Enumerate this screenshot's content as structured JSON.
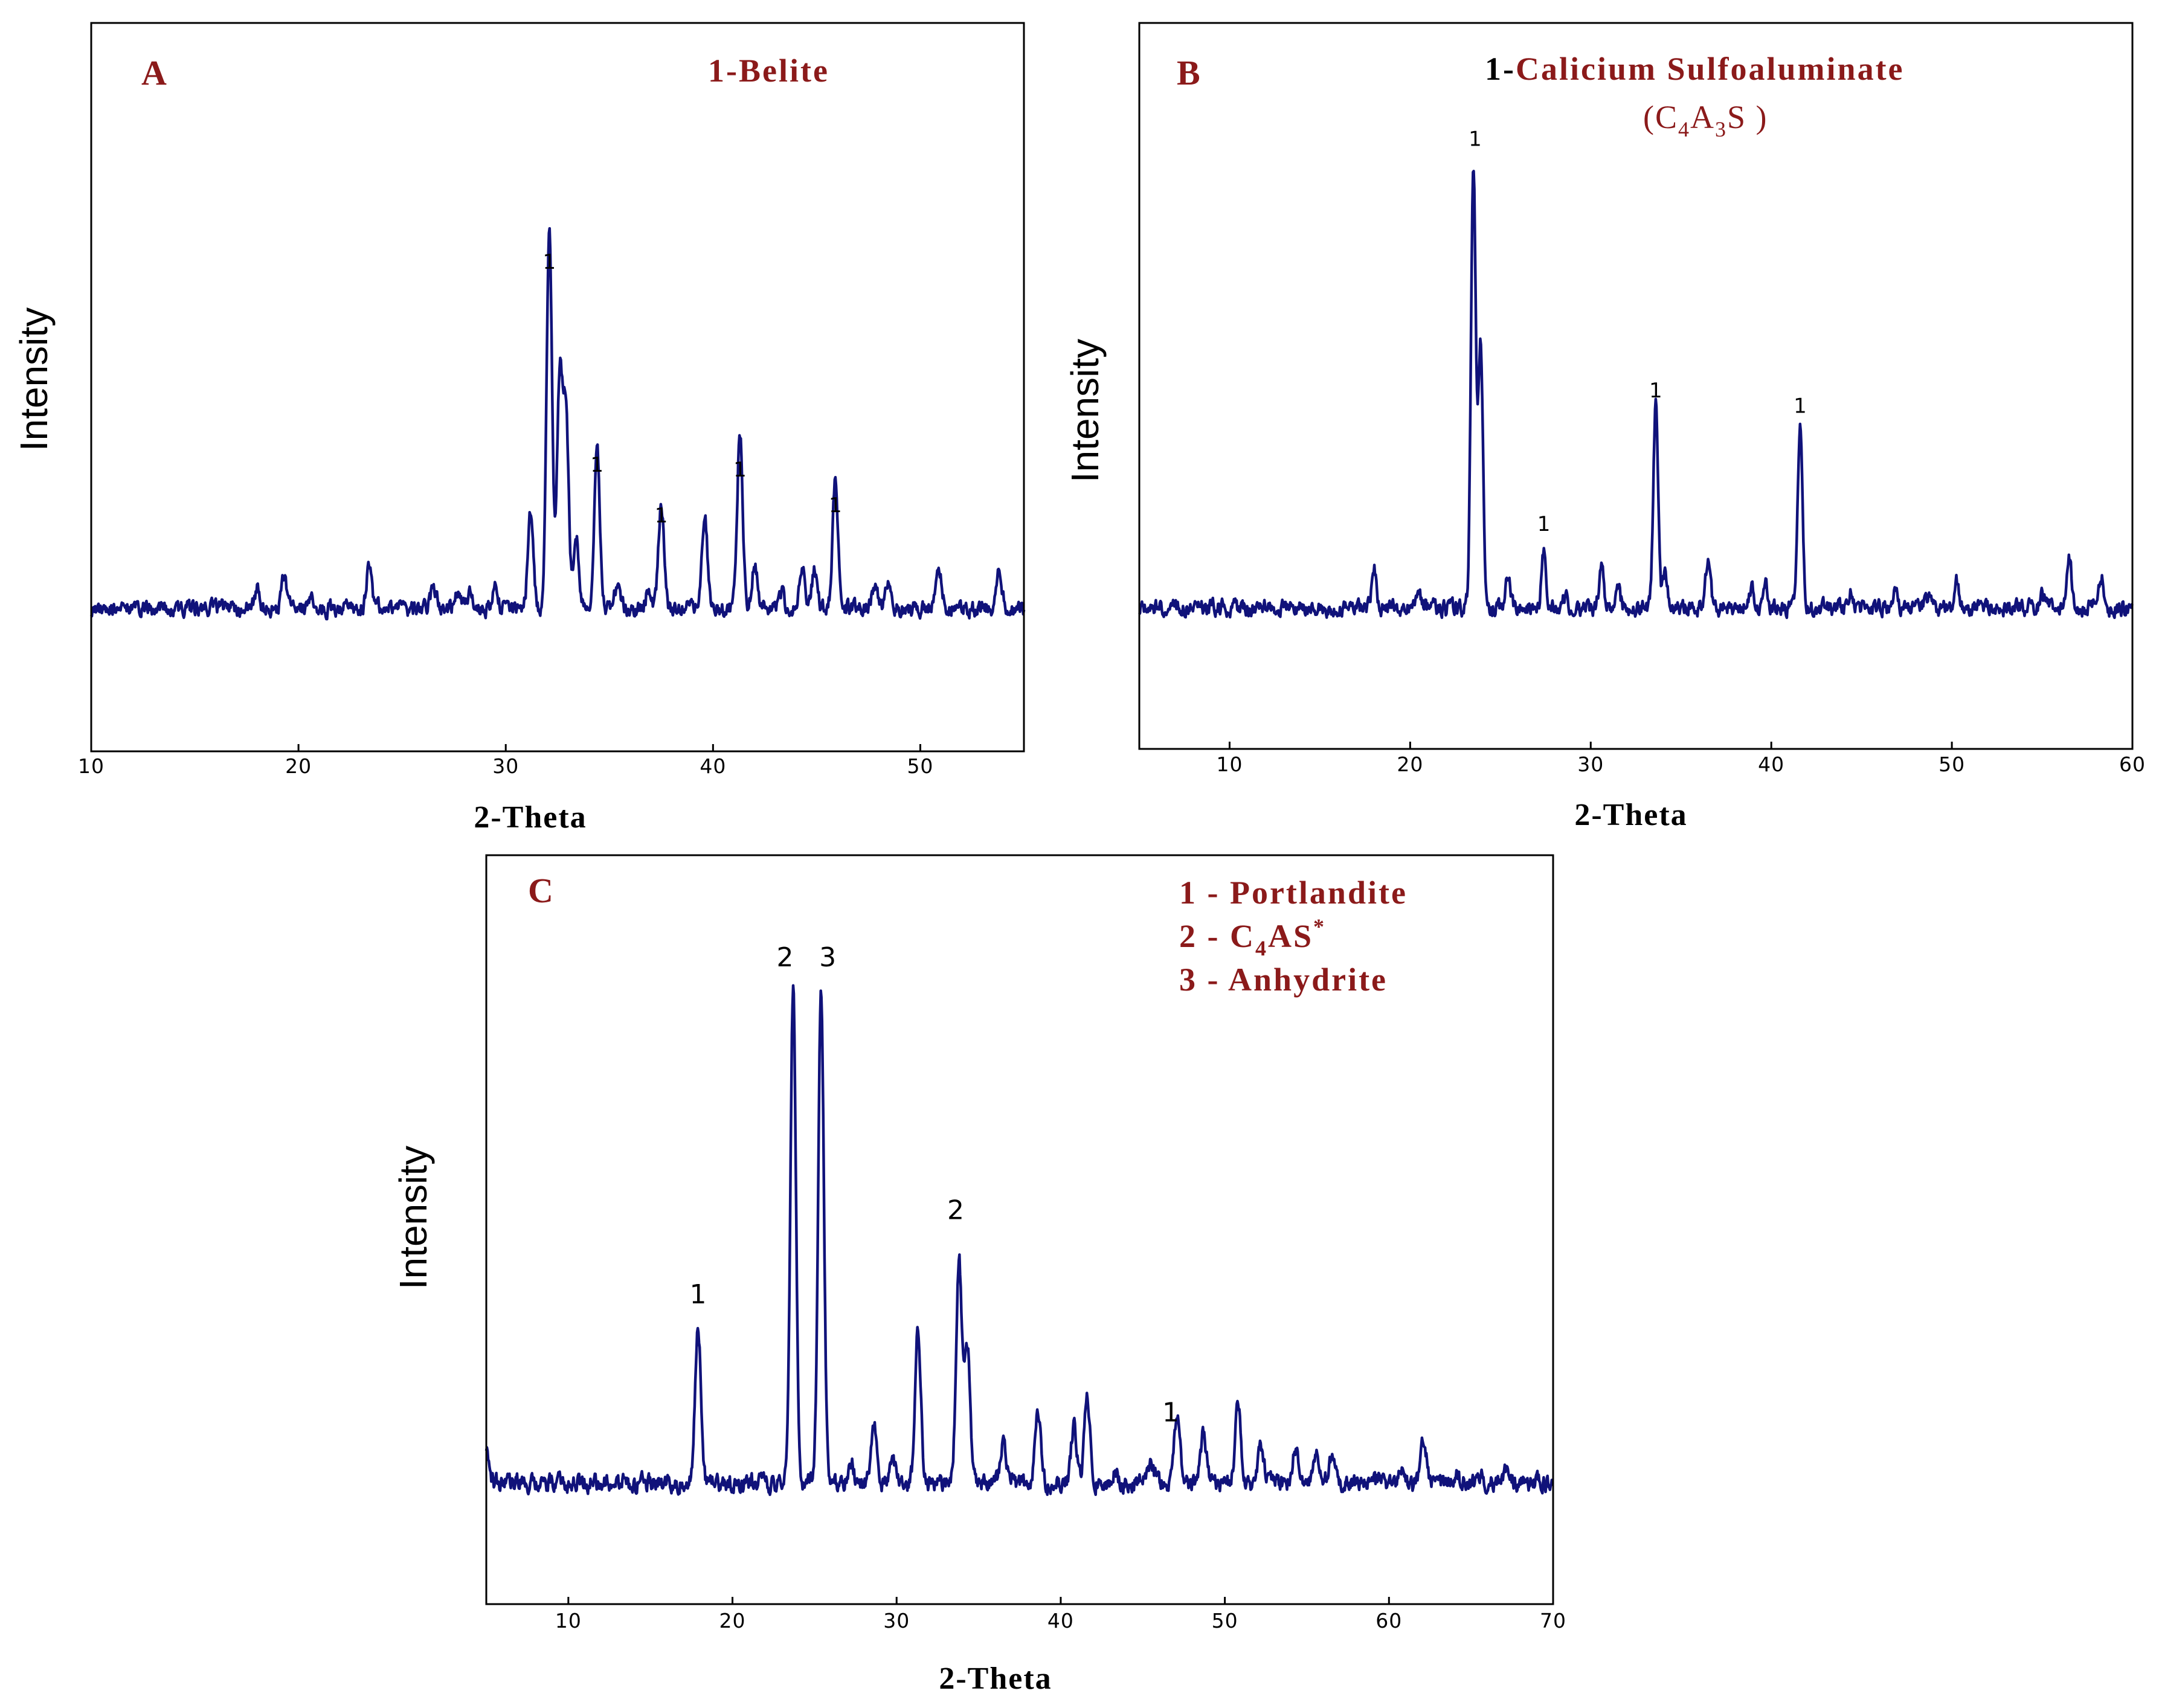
{
  "chart_data": [
    {
      "type": "line",
      "panel_label": "A",
      "legend": [
        "1-Belite"
      ],
      "xlabel": "2-Theta",
      "ylabel": "Intensity",
      "xlim": [
        10,
        55
      ],
      "ylim": [
        0,
        100
      ],
      "xticks": [
        10,
        20,
        30,
        40,
        50
      ],
      "color": "#10127a",
      "label_color": "#8b1a1a",
      "baseline": 11,
      "noise_seed": 11,
      "peaks": [
        {
          "x": 18.0,
          "y": 4
        },
        {
          "x": 19.3,
          "y": 6
        },
        {
          "x": 20.6,
          "y": 2
        },
        {
          "x": 23.4,
          "y": 8
        },
        {
          "x": 26.5,
          "y": 4
        },
        {
          "x": 27.7,
          "y": 4
        },
        {
          "x": 28.3,
          "y": 3
        },
        {
          "x": 29.5,
          "y": 4
        },
        {
          "x": 31.2,
          "y": 19
        },
        {
          "x": 32.1,
          "y": 75
        },
        {
          "x": 32.6,
          "y": 45
        },
        {
          "x": 32.9,
          "y": 40
        },
        {
          "x": 33.4,
          "y": 14
        },
        {
          "x": 34.4,
          "y": 32
        },
        {
          "x": 35.4,
          "y": 5
        },
        {
          "x": 36.9,
          "y": 4
        },
        {
          "x": 37.5,
          "y": 21
        },
        {
          "x": 39.6,
          "y": 18
        },
        {
          "x": 41.3,
          "y": 35
        },
        {
          "x": 42.0,
          "y": 9
        },
        {
          "x": 43.3,
          "y": 3
        },
        {
          "x": 44.3,
          "y": 8
        },
        {
          "x": 44.9,
          "y": 8
        },
        {
          "x": 45.9,
          "y": 25
        },
        {
          "x": 47.8,
          "y": 5
        },
        {
          "x": 48.4,
          "y": 5
        },
        {
          "x": 50.9,
          "y": 7
        },
        {
          "x": 53.8,
          "y": 7
        }
      ],
      "annotations": [
        {
          "text": "1",
          "x": 32.1,
          "y": 78
        },
        {
          "text": "1",
          "x": 34.4,
          "y": 38
        },
        {
          "text": "1",
          "x": 37.5,
          "y": 28
        },
        {
          "text": "1",
          "x": 41.3,
          "y": 37
        },
        {
          "text": "1",
          "x": 45.9,
          "y": 30
        }
      ]
    },
    {
      "type": "line",
      "panel_label": "B",
      "legend_prefix": "1-",
      "legend_main": "Calicium Sulfoaluminate",
      "legend_formula": [
        "(C",
        "4",
        "A",
        "3",
        "S )"
      ],
      "xlabel": "2-Theta",
      "ylabel": "Intensity",
      "xlim": [
        5,
        60
      ],
      "ylim": [
        0,
        100
      ],
      "xticks": [
        10,
        20,
        30,
        40,
        50,
        60
      ],
      "color": "#10127a",
      "label_color": "#8b1a1a",
      "baseline": 11,
      "noise_seed": 23,
      "peaks": [
        {
          "x": 18.0,
          "y": 8
        },
        {
          "x": 20.5,
          "y": 3
        },
        {
          "x": 23.5,
          "y": 87
        },
        {
          "x": 23.9,
          "y": 52
        },
        {
          "x": 25.4,
          "y": 6
        },
        {
          "x": 27.4,
          "y": 11
        },
        {
          "x": 28.6,
          "y": 2
        },
        {
          "x": 30.6,
          "y": 8
        },
        {
          "x": 31.5,
          "y": 4
        },
        {
          "x": 33.6,
          "y": 40
        },
        {
          "x": 34.1,
          "y": 6
        },
        {
          "x": 36.5,
          "y": 10
        },
        {
          "x": 38.9,
          "y": 4
        },
        {
          "x": 39.7,
          "y": 4
        },
        {
          "x": 41.6,
          "y": 36
        },
        {
          "x": 44.4,
          "y": 3
        },
        {
          "x": 46.9,
          "y": 3
        },
        {
          "x": 48.6,
          "y": 3
        },
        {
          "x": 50.3,
          "y": 5
        },
        {
          "x": 55.0,
          "y": 2
        },
        {
          "x": 56.5,
          "y": 10
        },
        {
          "x": 58.3,
          "y": 6
        }
      ],
      "annotations": [
        {
          "text": "1",
          "x": 23.6,
          "y": 101
        },
        {
          "text": "1",
          "x": 27.4,
          "y": 26
        },
        {
          "text": "1",
          "x": 33.6,
          "y": 52
        },
        {
          "text": "1",
          "x": 41.6,
          "y": 49
        }
      ]
    },
    {
      "type": "line",
      "panel_label": "C",
      "legend": [
        "1 - Portlandite",
        "2 - C4AS*",
        "3 - Anhydrite"
      ],
      "legend_formula": [
        "2 - C",
        "4",
        "AS",
        "*"
      ],
      "xlabel": "2-Theta",
      "ylabel": "Intensity",
      "xlim": [
        5,
        70
      ],
      "ylim": [
        0,
        100
      ],
      "xticks": [
        10,
        20,
        30,
        40,
        50,
        60,
        70
      ],
      "color": "#10127a",
      "label_color": "#8b1a1a",
      "baseline": 8,
      "noise_seed": 37,
      "peaks": [
        {
          "x": 5.0,
          "y": 7
        },
        {
          "x": 17.9,
          "y": 29
        },
        {
          "x": 23.7,
          "y": 88
        },
        {
          "x": 25.4,
          "y": 88
        },
        {
          "x": 27.2,
          "y": 4
        },
        {
          "x": 28.6,
          "y": 11
        },
        {
          "x": 29.8,
          "y": 4
        },
        {
          "x": 31.3,
          "y": 28
        },
        {
          "x": 33.8,
          "y": 40
        },
        {
          "x": 34.3,
          "y": 25
        },
        {
          "x": 36.5,
          "y": 8
        },
        {
          "x": 38.6,
          "y": 13
        },
        {
          "x": 40.8,
          "y": 10
        },
        {
          "x": 41.6,
          "y": 17
        },
        {
          "x": 43.3,
          "y": 2
        },
        {
          "x": 45.5,
          "y": 3
        },
        {
          "x": 47.1,
          "y": 13
        },
        {
          "x": 48.7,
          "y": 9
        },
        {
          "x": 50.8,
          "y": 14
        },
        {
          "x": 52.2,
          "y": 6
        },
        {
          "x": 54.3,
          "y": 6
        },
        {
          "x": 55.6,
          "y": 6
        },
        {
          "x": 56.5,
          "y": 5
        },
        {
          "x": 60.8,
          "y": 2
        },
        {
          "x": 62.1,
          "y": 8
        },
        {
          "x": 64.1,
          "y": 2
        },
        {
          "x": 65.5,
          "y": 2
        },
        {
          "x": 67.2,
          "y": 3
        }
      ],
      "annotations": [
        {
          "text": "1",
          "x": 17.9,
          "y": 40
        },
        {
          "text": "2",
          "x": 23.2,
          "y": 100
        },
        {
          "text": "3",
          "x": 25.8,
          "y": 100
        },
        {
          "text": "2",
          "x": 33.6,
          "y": 55
        },
        {
          "text": "1",
          "x": 46.7,
          "y": 19
        }
      ]
    }
  ]
}
